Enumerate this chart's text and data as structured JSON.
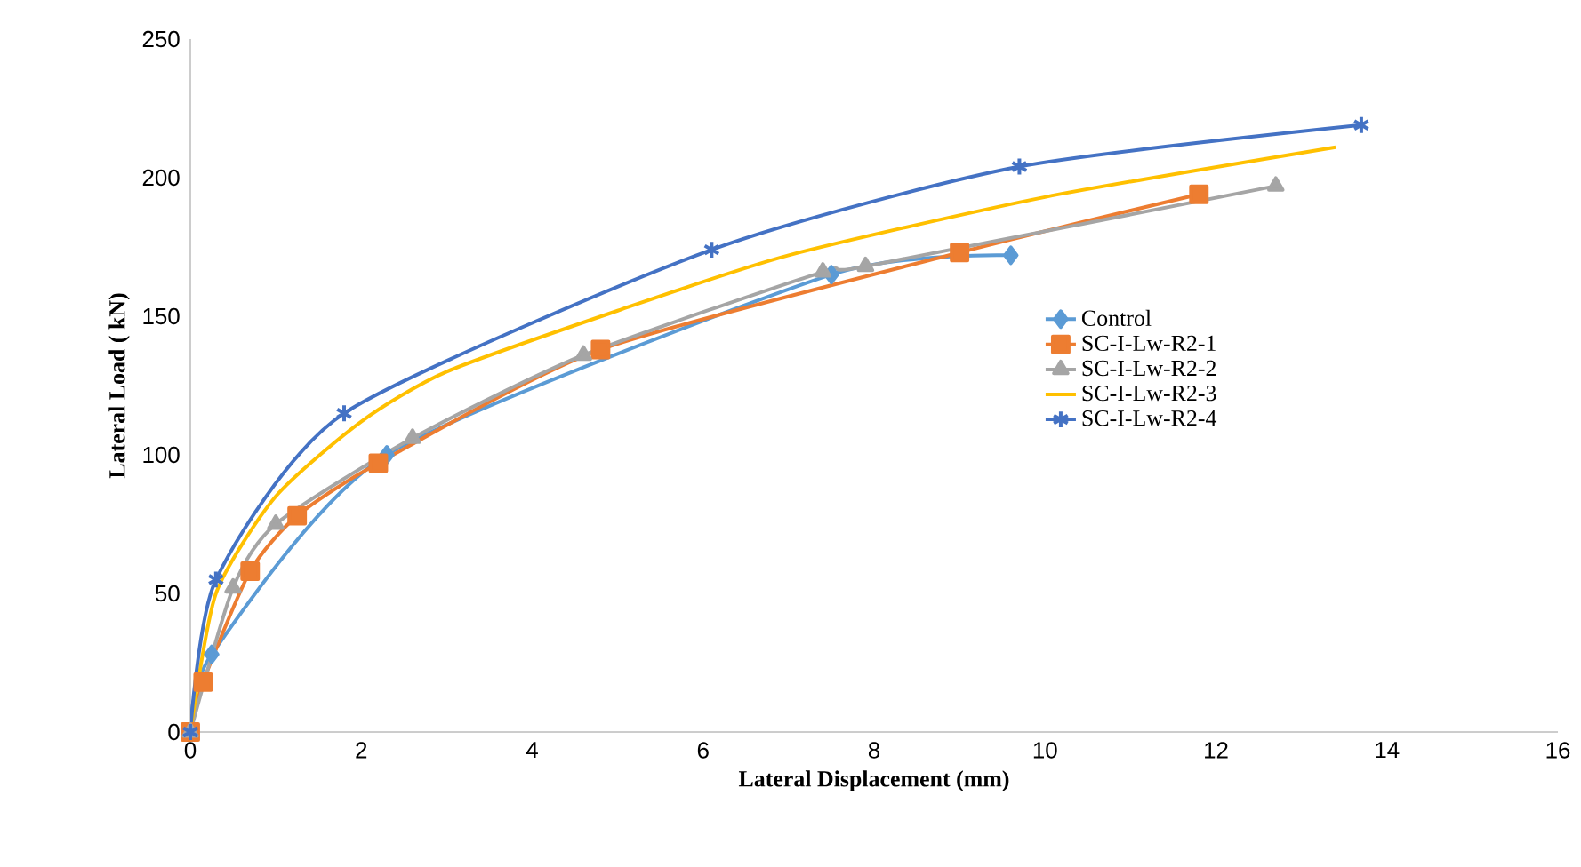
{
  "chart_data": {
    "type": "line",
    "xlabel": "Lateral Displacement (mm)",
    "ylabel": "Lateral Load ( kN)",
    "xlim": [
      0,
      16
    ],
    "xticks": [
      0,
      2,
      4,
      6,
      8,
      10,
      12,
      14,
      16
    ],
    "ylim": [
      0,
      250
    ],
    "yticks": [
      0,
      50,
      100,
      150,
      200,
      250
    ],
    "grid": false,
    "legend": "right",
    "series": [
      {
        "name": "Control",
        "color": "#5b9bd5",
        "marker": "diamond",
        "x": [
          0,
          0.25,
          0.7,
          1.2,
          2.3,
          2.6,
          4.7,
          7.5,
          9.6
        ],
        "values": [
          0,
          28,
          null,
          null,
          100,
          null,
          null,
          165,
          172
        ]
      },
      {
        "name": "SC-I-Lw-R2-1",
        "color": "#ed7d31",
        "marker": "square",
        "x": [
          0,
          0.15,
          0.7,
          1.25,
          2.2,
          4.8,
          9.0,
          11.8
        ],
        "values": [
          0,
          18,
          58,
          78,
          97,
          138,
          173,
          194
        ]
      },
      {
        "name": "SC-I-Lw-R2-2",
        "color": "#a5a5a5",
        "marker": "triangle",
        "x": [
          0,
          0.5,
          1.0,
          2.6,
          4.6,
          7.4,
          7.9,
          12.7
        ],
        "values": [
          0,
          52,
          75,
          106,
          136,
          166,
          168,
          197
        ]
      },
      {
        "name": "SC-I-Lw-R2-3",
        "color": "#ffc000",
        "marker": "none",
        "x": [
          0,
          0.3,
          1.0,
          2.0,
          3.0,
          5.0,
          7.0,
          10.0,
          13.4
        ],
        "values": [
          0,
          50,
          85,
          112,
          130,
          152,
          172,
          193,
          211
        ]
      },
      {
        "name": "SC-I-Lw-R2-4",
        "color": "#4472c4",
        "marker": "cross",
        "x": [
          0,
          0.3,
          1.8,
          6.1,
          9.7,
          13.7
        ],
        "values": [
          0,
          55,
          115,
          174,
          204,
          219
        ]
      }
    ]
  }
}
